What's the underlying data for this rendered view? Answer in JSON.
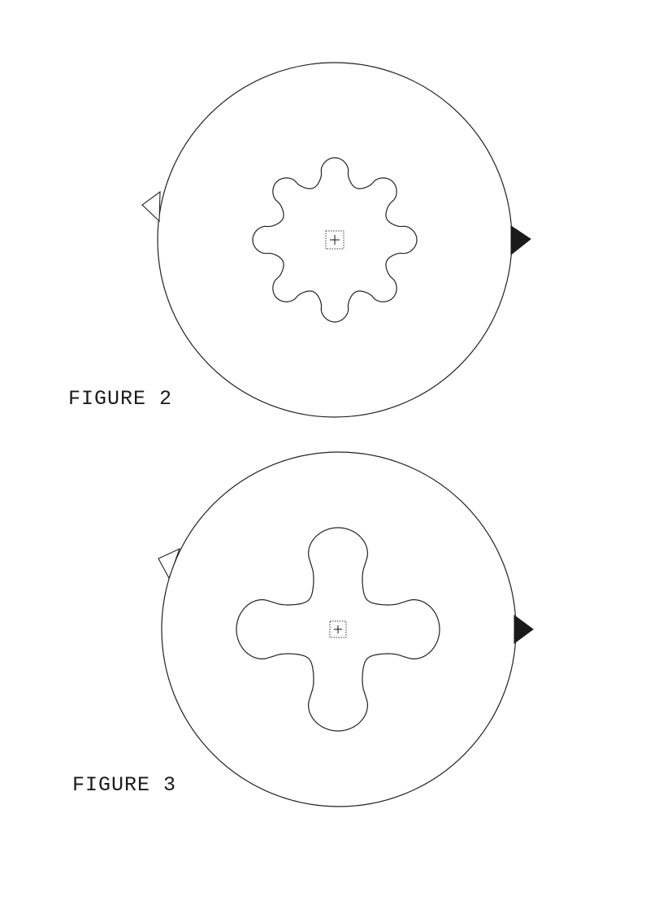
{
  "figures": [
    {
      "label": "FIGURE 2",
      "lobe_count": 8,
      "marker_left": "open-triangle-icon",
      "marker_right": "solid-triangle-icon"
    },
    {
      "label": "FIGURE 3",
      "lobe_count": 4,
      "marker_left": "open-triangle-icon",
      "marker_right": "solid-triangle-icon"
    }
  ],
  "colors": {
    "line": "#222222",
    "background": "#ffffff"
  }
}
